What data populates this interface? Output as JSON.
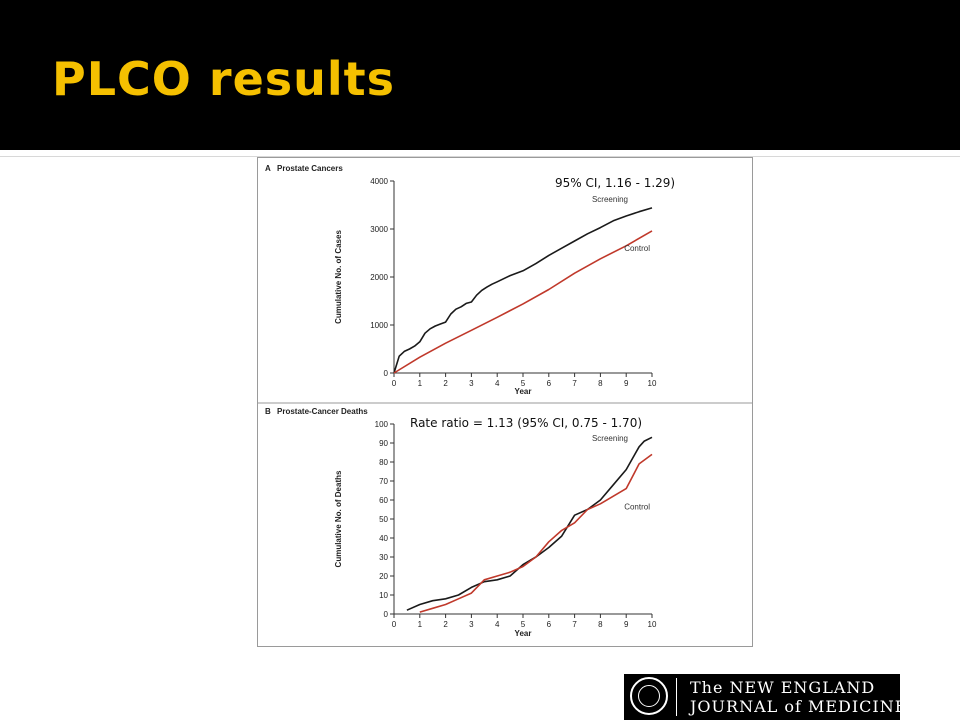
{
  "slide": {
    "title": "PLCO results"
  },
  "annotations": {
    "ci_a": "95% CI, 1.16 - 1.29)",
    "ci_b": "Rate ratio = 1.13 (95% CI, 0.75 - 1.70)"
  },
  "logo": {
    "line1": "The NEW ENGLAND",
    "line2": "JOURNAL of MEDICINE"
  },
  "colors": {
    "title": "#f5c000",
    "screening": "#1a1a1a",
    "control": "#c0392b"
  },
  "chart_data": [
    {
      "type": "line",
      "panel": "A",
      "title": "Prostate Cancers",
      "xlabel": "Year",
      "ylabel": "Cumulative No. of Cases",
      "xlim": [
        0,
        10
      ],
      "ylim": [
        0,
        4000
      ],
      "xticks": [
        0,
        1,
        2,
        3,
        4,
        5,
        6,
        7,
        8,
        9,
        10
      ],
      "yticks": [
        0,
        1000,
        2000,
        3000,
        4000
      ],
      "series": [
        {
          "name": "Screening",
          "color": "#1a1a1a",
          "x": [
            0,
            0.2,
            0.4,
            0.6,
            0.8,
            1.0,
            1.2,
            1.4,
            1.6,
            1.8,
            2.0,
            2.2,
            2.4,
            2.6,
            2.8,
            3.0,
            3.2,
            3.4,
            3.6,
            3.8,
            4.0,
            4.5,
            5.0,
            5.5,
            6.0,
            6.5,
            7.0,
            7.5,
            8.0,
            8.5,
            9.0,
            9.5,
            10.0
          ],
          "y": [
            0,
            350,
            450,
            500,
            560,
            650,
            830,
            920,
            980,
            1020,
            1060,
            1230,
            1330,
            1380,
            1450,
            1480,
            1620,
            1720,
            1790,
            1850,
            1900,
            2030,
            2130,
            2280,
            2450,
            2600,
            2750,
            2900,
            3030,
            3170,
            3270,
            3360,
            3440
          ]
        },
        {
          "name": "Control",
          "color": "#c0392b",
          "x": [
            0,
            1,
            2,
            3,
            4,
            5,
            6,
            7,
            8,
            9,
            10
          ],
          "y": [
            0,
            330,
            620,
            890,
            1160,
            1440,
            1740,
            2080,
            2380,
            2650,
            2960
          ]
        }
      ]
    },
    {
      "type": "line",
      "panel": "B",
      "title": "Prostate-Cancer Deaths",
      "xlabel": "Year",
      "ylabel": "Cumulative No. of Deaths",
      "xlim": [
        0,
        10
      ],
      "ylim": [
        0,
        100
      ],
      "xticks": [
        0,
        1,
        2,
        3,
        4,
        5,
        6,
        7,
        8,
        9,
        10
      ],
      "yticks": [
        0,
        10,
        20,
        30,
        40,
        50,
        60,
        70,
        80,
        90,
        100
      ],
      "series": [
        {
          "name": "Screening",
          "color": "#1a1a1a",
          "x": [
            0.5,
            1.0,
            1.5,
            2.0,
            2.5,
            3.0,
            3.5,
            4.0,
            4.5,
            5.0,
            5.5,
            6.0,
            6.5,
            7.0,
            7.5,
            8.0,
            8.5,
            9.0,
            9.5,
            9.7,
            10.0
          ],
          "y": [
            2,
            5,
            7,
            8,
            10,
            14,
            17,
            18,
            20,
            26,
            30,
            35,
            41,
            52,
            55,
            60,
            68,
            76,
            88,
            91,
            93
          ]
        },
        {
          "name": "Control",
          "color": "#c0392b",
          "x": [
            1.0,
            1.5,
            2.0,
            2.5,
            3.0,
            3.5,
            4.0,
            4.5,
            5.0,
            5.5,
            6.0,
            6.5,
            7.0,
            7.5,
            8.0,
            8.5,
            9.0,
            9.5,
            10.0
          ],
          "y": [
            1,
            3,
            5,
            8,
            11,
            18,
            20,
            22,
            25,
            30,
            38,
            44,
            48,
            55,
            58,
            62,
            66,
            79,
            84
          ]
        }
      ]
    }
  ]
}
